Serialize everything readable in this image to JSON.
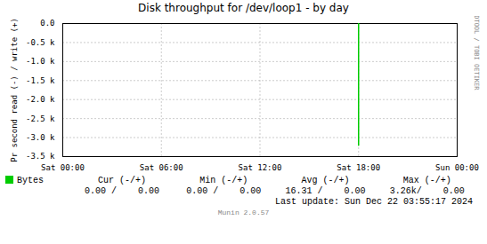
{
  "chart_data": {
    "type": "line",
    "title": "Disk throughput for /dev/loop1 - by day",
    "ylabel": "Pr second read (-) / write (+)",
    "x": [
      72,
      72
    ],
    "series": [
      {
        "name": "Bytes",
        "color": "#00cc00",
        "values": [
          0,
          -3200
        ]
      }
    ],
    "xlim": [
      0,
      96
    ],
    "xticks": [
      {
        "value": 0,
        "label": "Sat 00:00"
      },
      {
        "value": 24,
        "label": "Sat 06:00"
      },
      {
        "value": 48,
        "label": "Sat 12:00"
      },
      {
        "value": 72,
        "label": "Sat 18:00"
      },
      {
        "value": 96,
        "label": "Sun 00:00"
      }
    ],
    "ylim": [
      -3500,
      0
    ],
    "yticks": [
      {
        "value": 0,
        "label": "0.0"
      },
      {
        "value": -500,
        "label": "-0.5 k"
      },
      {
        "value": -1000,
        "label": "-1.0 k"
      },
      {
        "value": -1500,
        "label": "-1.5 k"
      },
      {
        "value": -2000,
        "label": "-2.0 k"
      },
      {
        "value": -2500,
        "label": "-2.5 k"
      },
      {
        "value": -3000,
        "label": "-3.0 k"
      },
      {
        "value": -3500,
        "label": "-3.5 k"
      }
    ],
    "grid": true,
    "legend": "bottom",
    "stats": [
      {
        "label": "Cur (-/+)",
        "value": "0.00 /    0.00"
      },
      {
        "label": "Min (-/+)",
        "value": "0.00 /    0.00"
      },
      {
        "label": "Avg (-/+)",
        "value": "16.31 /    0.00"
      },
      {
        "label": "Max (-/+)",
        "value": "3.26k/    0.00"
      }
    ],
    "footer": "Last update: Sun Dec 22 03:55:17 2024",
    "annotations": [
      "RRDTOOL / TOBI OETIKER",
      "Munin 2.0.57"
    ]
  }
}
